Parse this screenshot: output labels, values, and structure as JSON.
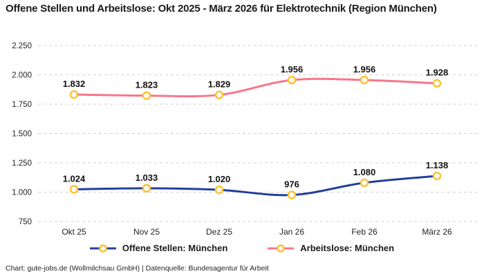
{
  "title": "Offene Stellen und Arbeitslose: Okt 2025 - März 2026 für Elektrotechnik (Region München)",
  "footer": "Chart: gute-jobs.de (Wollmilchsau GmbH) | Datenquelle: Bundesagentur für Arbeit",
  "colors": {
    "offene_stellen": "#22409a",
    "arbeitslose": "#f8758a",
    "marker_ring": "#fdc132",
    "marker_fill": "#ffffff",
    "grid": "#cfcfcf",
    "text": "#1a1a1a"
  },
  "chart_data": {
    "type": "line",
    "categories": [
      "Okt 25",
      "Nov 25",
      "Dez 25",
      "Jan 26",
      "Feb 26",
      "März 26"
    ],
    "series": [
      {
        "name": "Offene Stellen: München",
        "values": [
          1024,
          1033,
          1020,
          976,
          1080,
          1138
        ],
        "labels": [
          "1.024",
          "1.033",
          "1.020",
          "976",
          "1.080",
          "1.138"
        ],
        "color_key": "offene_stellen"
      },
      {
        "name": "Arbeitslose: München",
        "values": [
          1832,
          1823,
          1829,
          1956,
          1956,
          1928
        ],
        "labels": [
          "1.832",
          "1.823",
          "1.829",
          "1.956",
          "1.956",
          "1.928"
        ],
        "color_key": "arbeitslose"
      }
    ],
    "y_ticks": [
      {
        "value": 2250,
        "label": "2.250"
      },
      {
        "value": 2000,
        "label": "2.000"
      },
      {
        "value": 1750,
        "label": "1.750"
      },
      {
        "value": 1500,
        "label": "1.500"
      },
      {
        "value": 1250,
        "label": "1.250"
      },
      {
        "value": 1000,
        "label": "1.000"
      },
      {
        "value": 750,
        "label": "750"
      }
    ],
    "ylim": [
      750,
      2250
    ],
    "grid": "dashed",
    "legend_position": "bottom"
  }
}
